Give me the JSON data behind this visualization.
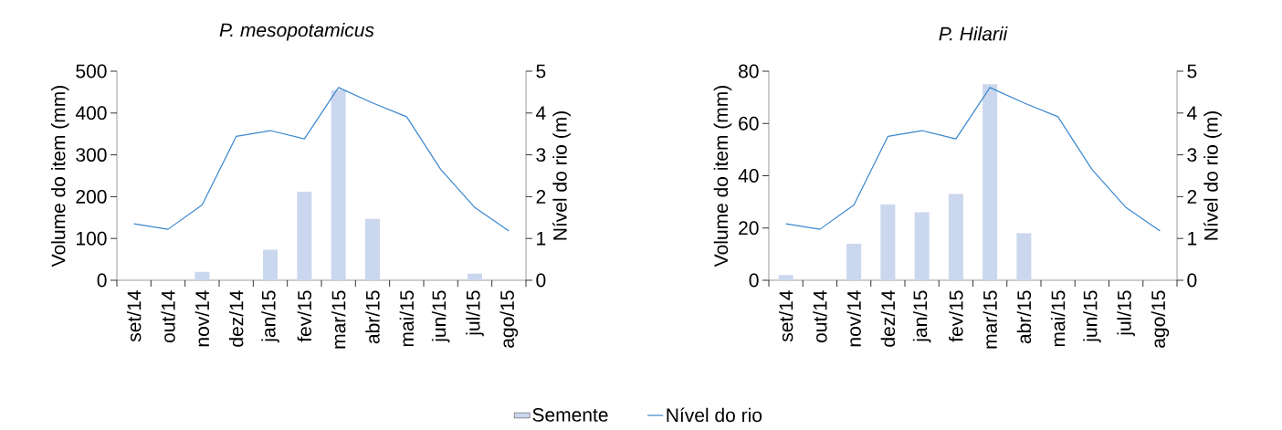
{
  "chart_data": [
    {
      "type": "bar",
      "title": "P. mesopotamicus",
      "ylabel": "Volume do item (mm)",
      "y2label": "Nível do rio (m)",
      "categories": [
        "set/14",
        "out/14",
        "nov/14",
        "dez/14",
        "jan/15",
        "fev/15",
        "mar/15",
        "abr/15",
        "mai/15",
        "jun/15",
        "jul/15",
        "ago/15"
      ],
      "series": [
        {
          "name": "Semente",
          "color": "#cbd7ee",
          "values": [
            0,
            0,
            20,
            0,
            73,
            212,
            455,
            147,
            0,
            0,
            16,
            0
          ]
        },
        {
          "name": "Nível do rio",
          "type": "line",
          "axis": "y2",
          "color": "#3a87cd",
          "values": [
            1.35,
            1.22,
            1.8,
            3.44,
            3.58,
            3.38,
            4.61,
            4.24,
            3.91,
            2.65,
            1.74,
            1.18
          ]
        }
      ],
      "ylim": [
        0,
        500
      ],
      "yticks": [
        0,
        100,
        200,
        300,
        400,
        500
      ],
      "y2lim": [
        0,
        5
      ],
      "y2ticks": [
        0,
        1,
        2,
        3,
        4,
        5
      ],
      "legend": "bottom"
    },
    {
      "type": "bar",
      "title": "P. Hilarii",
      "ylabel": "Volume do item (mm)",
      "y2label": "Nível do rio (m)",
      "categories": [
        "set/14",
        "out/14",
        "nov/14",
        "dez/14",
        "jan/15",
        "fev/15",
        "mar/15",
        "abr/15",
        "mai/15",
        "jun/15",
        "jul/15",
        "ago/15"
      ],
      "series": [
        {
          "color": "#cbd7ee",
          "values": [
            2,
            0,
            14,
            29,
            26,
            33,
            75,
            18,
            0,
            0,
            0,
            0
          ]
        },
        {
          "type": "line",
          "axis": "y2",
          "color": "#3a87cd",
          "values": [
            1.35,
            1.22,
            1.8,
            3.44,
            3.58,
            3.38,
            4.61,
            4.24,
            3.91,
            2.65,
            1.74,
            1.18
          ]
        }
      ],
      "ylim": [
        0,
        80
      ],
      "yticks": [
        0,
        20,
        40,
        60,
        80
      ],
      "y2lim": [
        0,
        5
      ],
      "y2ticks": [
        0,
        1,
        2,
        3,
        4,
        5
      ]
    }
  ]
}
